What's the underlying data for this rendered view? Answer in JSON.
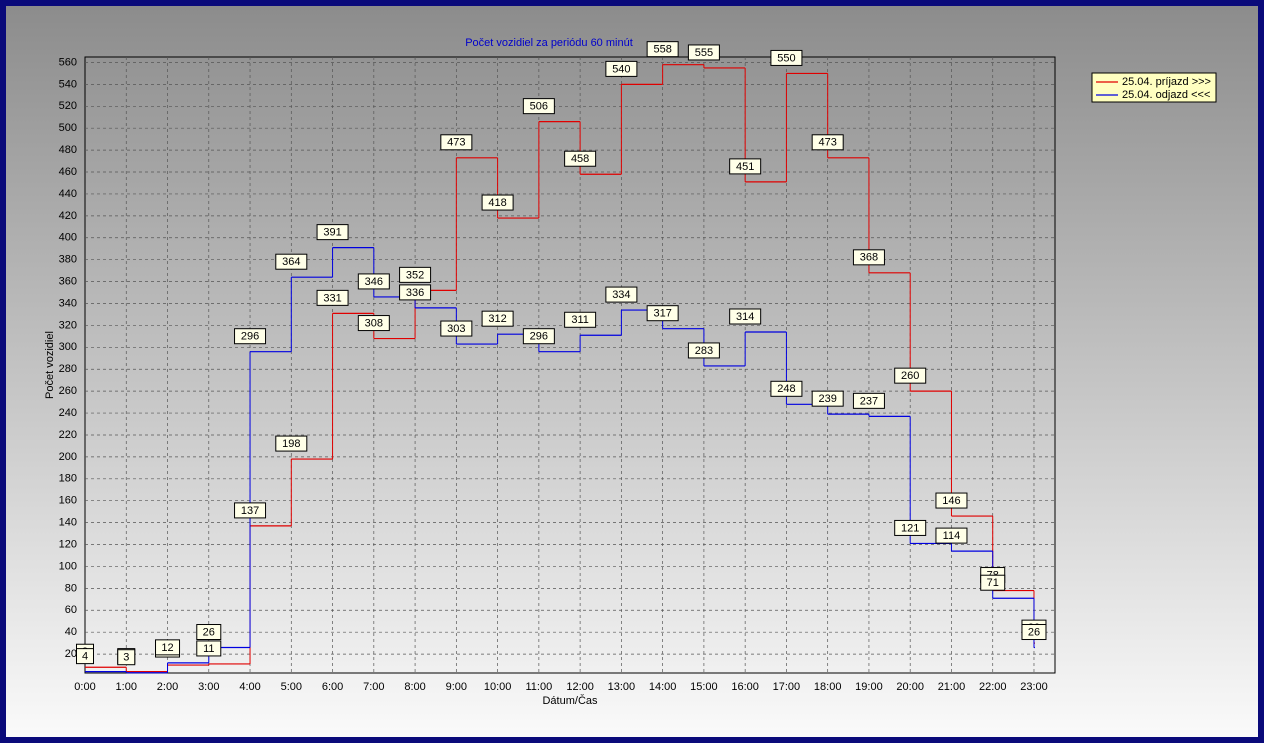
{
  "chart_data": {
    "type": "step",
    "title": "Počet vozidiel za periódu 60 minút",
    "x_label": "Dátum/Čas",
    "y_label": "Počet vozidiel",
    "categories": [
      "0:00",
      "1:00",
      "2:00",
      "3:00",
      "4:00",
      "5:00",
      "6:00",
      "7:00",
      "8:00",
      "9:00",
      "10:00",
      "11:00",
      "12:00",
      "13:00",
      "14:00",
      "15:00",
      "16:00",
      "17:00",
      "18:00",
      "19:00",
      "20:00",
      "21:00",
      "22:00",
      "23:00"
    ],
    "series": [
      {
        "name": "25.04.  príjazd >>>",
        "color": "#e00000",
        "values": [
          8,
          4,
          10,
          11,
          137,
          198,
          331,
          308,
          352,
          473,
          418,
          506,
          458,
          540,
          558,
          555,
          451,
          550,
          473,
          368,
          260,
          146,
          78,
          30
        ]
      },
      {
        "name": "25.04.  odjazd <<<",
        "color": "#0000e0",
        "values": [
          4,
          3,
          12,
          26,
          296,
          364,
          391,
          346,
          336,
          303,
          312,
          296,
          311,
          334,
          317,
          283,
          314,
          248,
          239,
          237,
          121,
          114,
          71,
          26
        ]
      }
    ],
    "ylim": [
      0,
      565
    ],
    "yticks": [
      20,
      40,
      60,
      80,
      100,
      120,
      140,
      160,
      180,
      200,
      220,
      240,
      260,
      280,
      300,
      320,
      340,
      360,
      380,
      400,
      420,
      440,
      460,
      480,
      500,
      520,
      540,
      560
    ],
    "grid": true
  }
}
